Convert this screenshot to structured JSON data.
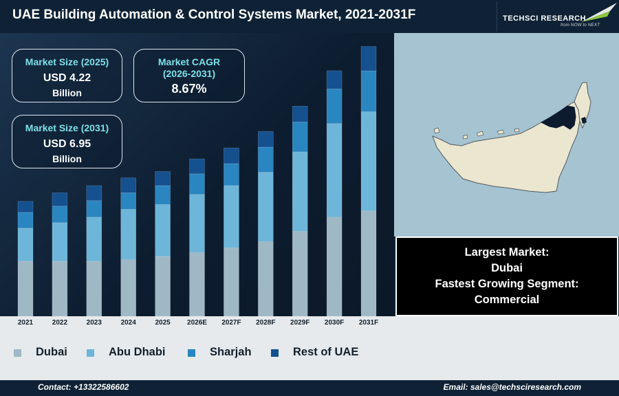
{
  "header": {
    "title": "UAE Building Automation & Control Systems Market, 2021-2031F",
    "logo_text": "TECHSCI RESEARCH",
    "logo_tagline": "from NOW to NEXT"
  },
  "kpis": {
    "market_size_2025": {
      "label": "Market Size (2025)",
      "value": "USD 4.22",
      "unit": "Billion"
    },
    "market_cagr": {
      "label_line1": "Market CAGR",
      "label_line2": "(2026-2031)",
      "value": "8.67%"
    },
    "market_size_2031": {
      "label": "Market Size (2031)",
      "value": "USD 6.95",
      "unit": "Billion"
    }
  },
  "info_box": {
    "largest_market_label": "Largest Market:",
    "largest_market_value": "Dubai",
    "fastest_segment_label": "Fastest Growing Segment:",
    "fastest_segment_value": "Commercial"
  },
  "colors": {
    "dubai": "#9fb8c5",
    "abu_dhabi": "#6db6d9",
    "sharjah": "#2a86c0",
    "rest_of_uae": "#15508f",
    "kpi_label": "#7ee0e8",
    "map_sea": "#a5c3d1",
    "map_land": "#ebe6cf",
    "map_highlight": "#0d1b2e"
  },
  "footer": {
    "contact": "Contact: +13322586602",
    "email": "Email: sales@techsciresearch.com"
  },
  "chart_data": {
    "type": "bar",
    "stacked": true,
    "categories": [
      "2021",
      "2022",
      "2023",
      "2024",
      "2025",
      "2026E",
      "2027F",
      "2028F",
      "2029F",
      "2030F",
      "2031F"
    ],
    "series": [
      {
        "name": "Dubai",
        "values": [
          70,
          70,
          70,
          72,
          76,
          81,
          87,
          95,
          108,
          126,
          134
        ]
      },
      {
        "name": "Abu Dhabi",
        "values": [
          42,
          49,
          56,
          64,
          66,
          74,
          79,
          88,
          101,
          119,
          126
        ]
      },
      {
        "name": "Sharjah",
        "values": [
          20,
          21,
          21,
          21,
          24,
          26,
          28,
          32,
          38,
          44,
          52
        ]
      },
      {
        "name": "Rest of UAE",
        "values": [
          14,
          17,
          19,
          19,
          18,
          19,
          20,
          20,
          20,
          23,
          31
        ]
      }
    ],
    "ylim": [
      0,
      360
    ],
    "grid": false,
    "legend_position": "bottom"
  }
}
